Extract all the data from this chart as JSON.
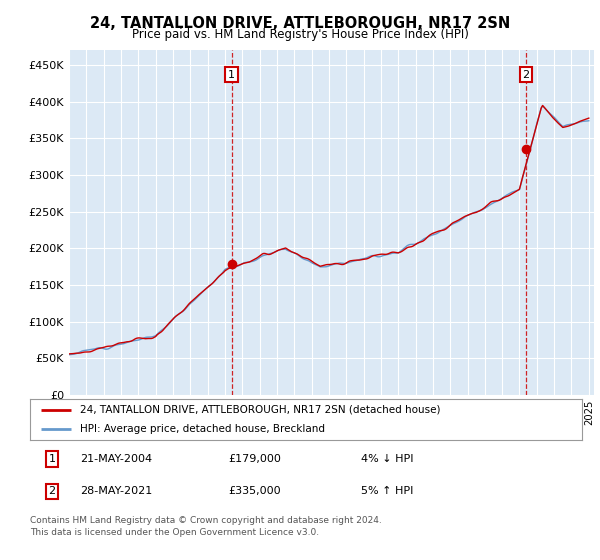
{
  "title": "24, TANTALLON DRIVE, ATTLEBOROUGH, NR17 2SN",
  "subtitle": "Price paid vs. HM Land Registry's House Price Index (HPI)",
  "plot_bg_color": "#dce9f5",
  "yticks": [
    0,
    50000,
    100000,
    150000,
    200000,
    250000,
    300000,
    350000,
    400000,
    450000
  ],
  "ylabels": [
    "£0",
    "£50K",
    "£100K",
    "£150K",
    "£200K",
    "£250K",
    "£300K",
    "£350K",
    "£400K",
    "£450K"
  ],
  "ylim": [
    0,
    470000
  ],
  "transaction1_year": 2004.38,
  "transaction1_price": 179000,
  "transaction2_year": 2021.38,
  "transaction2_price": 335000,
  "red_line_color": "#cc0000",
  "blue_line_color": "#6699cc",
  "marker_box_color": "#cc0000",
  "legend_line1": "24, TANTALLON DRIVE, ATTLEBOROUGH, NR17 2SN (detached house)",
  "legend_line2": "HPI: Average price, detached house, Breckland",
  "footer1": "Contains HM Land Registry data © Crown copyright and database right 2024.",
  "footer2": "This data is licensed under the Open Government Licence v3.0.",
  "note1_label": "1",
  "note1_date": "21-MAY-2004",
  "note1_price": "£179,000",
  "note1_pct": "4% ↓ HPI",
  "note2_label": "2",
  "note2_date": "28-MAY-2021",
  "note2_price": "£335,000",
  "note2_pct": "5% ↑ HPI"
}
